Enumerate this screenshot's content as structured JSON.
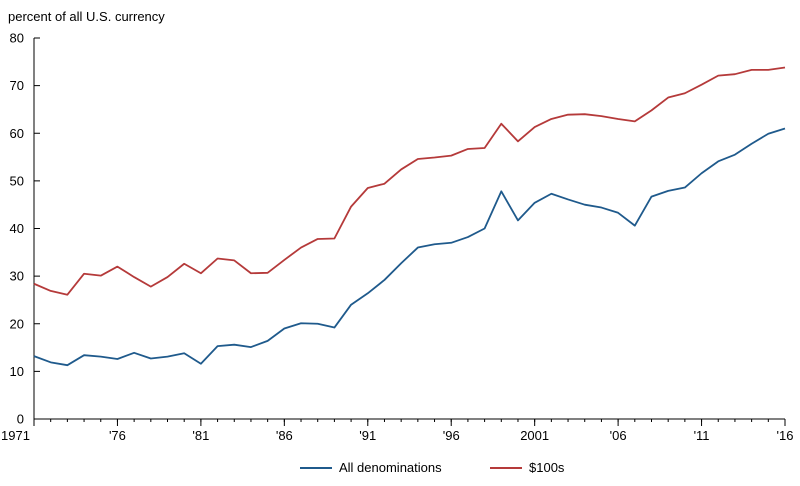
{
  "chart_data": {
    "type": "line",
    "ylabel": "percent of all U.S. currency",
    "ylim": [
      0,
      80
    ],
    "yticks": [
      0,
      10,
      20,
      30,
      40,
      50,
      60,
      70,
      80
    ],
    "xlim": [
      1971,
      2016
    ],
    "xticks": [
      {
        "value": 1971,
        "label": "1971"
      },
      {
        "value": 1976,
        "label": "'76"
      },
      {
        "value": 1981,
        "label": "'81"
      },
      {
        "value": 1986,
        "label": "'86"
      },
      {
        "value": 1991,
        "label": "'91"
      },
      {
        "value": 1996,
        "label": "'96"
      },
      {
        "value": 2001,
        "label": "2001"
      },
      {
        "value": 2006,
        "label": "'06"
      },
      {
        "value": 2011,
        "label": "'11"
      },
      {
        "value": 2016,
        "label": "'16"
      }
    ],
    "legend_position": "bottom",
    "grid": false,
    "x": [
      1971,
      1972,
      1973,
      1974,
      1975,
      1976,
      1977,
      1978,
      1979,
      1980,
      1981,
      1982,
      1983,
      1984,
      1985,
      1986,
      1987,
      1988,
      1989,
      1990,
      1991,
      1992,
      1993,
      1994,
      1995,
      1996,
      1997,
      1998,
      1999,
      2000,
      2001,
      2002,
      2003,
      2004,
      2005,
      2006,
      2007,
      2008,
      2009,
      2010,
      2011,
      2012,
      2013,
      2014,
      2015,
      2016
    ],
    "series": [
      {
        "name": "All denominations",
        "color": "#1f5a8c",
        "values": [
          13.2,
          11.9,
          11.3,
          13.4,
          13.1,
          12.6,
          13.9,
          12.7,
          13.1,
          13.8,
          11.6,
          15.3,
          15.6,
          15.1,
          16.4,
          19.0,
          20.1,
          20.0,
          19.2,
          24.0,
          26.4,
          29.2,
          32.7,
          36.0,
          36.7,
          37.0,
          38.2,
          40.0,
          47.8,
          41.7,
          45.4,
          47.3,
          46.1,
          45.0,
          44.4,
          43.3,
          40.6,
          46.7,
          47.9,
          48.6,
          51.6,
          54.1,
          55.5,
          57.8,
          59.9,
          61.0
        ]
      },
      {
        "name": "$100s",
        "color": "#b53a3a",
        "values": [
          28.4,
          26.9,
          26.1,
          30.5,
          30.1,
          32.0,
          29.8,
          27.8,
          29.8,
          32.6,
          30.6,
          33.7,
          33.3,
          30.6,
          30.7,
          33.4,
          36.0,
          37.8,
          37.9,
          44.6,
          48.5,
          49.4,
          52.4,
          54.6,
          54.9,
          55.3,
          56.7,
          56.9,
          62.0,
          58.3,
          61.3,
          63.0,
          63.9,
          64.0,
          63.6,
          63.0,
          62.5,
          64.8,
          67.5,
          68.4,
          70.2,
          72.1,
          72.4,
          73.3,
          73.3,
          73.8
        ]
      }
    ]
  }
}
